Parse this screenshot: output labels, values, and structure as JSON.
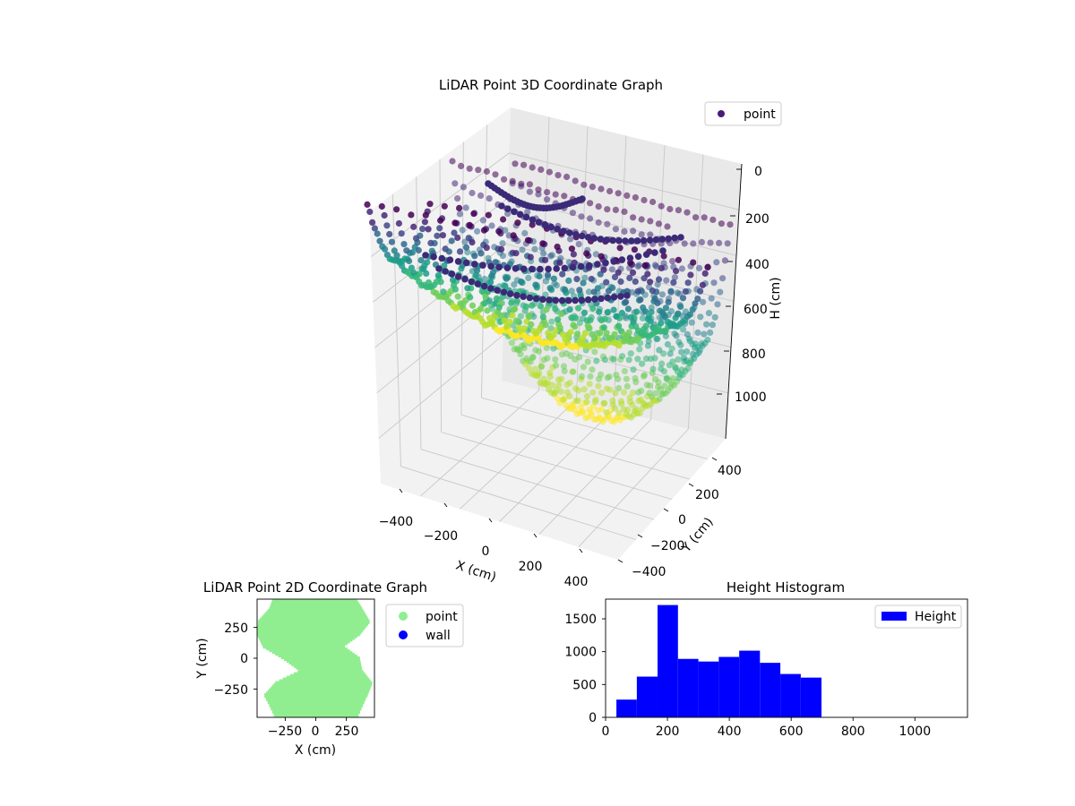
{
  "chart_data": [
    {
      "type": "scatter",
      "title": "LiDAR Point 3D Coordinate Graph",
      "xlabel": "X (cm)",
      "ylabel": "Y (cm)",
      "zlabel": "H (cm)",
      "xticks": [
        "−400",
        "−200",
        "0",
        "200",
        "400"
      ],
      "yticks": [
        "−400",
        "−200",
        "0",
        "200",
        "400"
      ],
      "zticks": [
        "0",
        "200",
        "400",
        "600",
        "800",
        "1000"
      ],
      "xlim": [
        -450,
        450
      ],
      "ylim": [
        -450,
        450
      ],
      "zlim": [
        0,
        1100
      ],
      "z_inverted": true,
      "colormap": "viridis",
      "grid": true,
      "legend": {
        "position": "top-right",
        "entries": [
          {
            "label": "point",
            "color": "#4b1a78"
          }
        ]
      },
      "series": [
        {
          "name": "point"
        }
      ]
    },
    {
      "type": "scatter",
      "title": "LiDAR Point 2D Coordinate Graph",
      "xlabel": "X (cm)",
      "ylabel": "Y (cm)",
      "xticks": [
        "−250",
        "0",
        "250"
      ],
      "yticks": [
        "−250",
        "0",
        "250"
      ],
      "xlim": [
        -480,
        480
      ],
      "ylim": [
        -480,
        480
      ],
      "legend": {
        "position": "outside-right",
        "entries": [
          {
            "label": "point",
            "color": "#90ee90"
          },
          {
            "label": "wall",
            "color": "#0000ff"
          }
        ]
      },
      "series": [
        {
          "name": "point",
          "color": "#90ee90"
        },
        {
          "name": "wall",
          "color": "#0000ff"
        }
      ]
    },
    {
      "type": "bar",
      "title": "Height Histogram",
      "xlim": [
        0,
        1170
      ],
      "ylim": [
        0,
        1800
      ],
      "xticks": [
        "0",
        "200",
        "400",
        "600",
        "800",
        "1000"
      ],
      "yticks": [
        "0",
        "500",
        "1000",
        "1500"
      ],
      "bin_edges": [
        35,
        101,
        168,
        234,
        300,
        366,
        432,
        499,
        565,
        631,
        698
      ],
      "counts": [
        270,
        620,
        1710,
        890,
        850,
        920,
        1015,
        830,
        660,
        605
      ],
      "color": "#0000ff",
      "legend": {
        "position": "top-right",
        "entries": [
          {
            "label": "Height",
            "color": "#0000ff"
          }
        ]
      },
      "series": [
        {
          "name": "Height"
        }
      ]
    }
  ]
}
